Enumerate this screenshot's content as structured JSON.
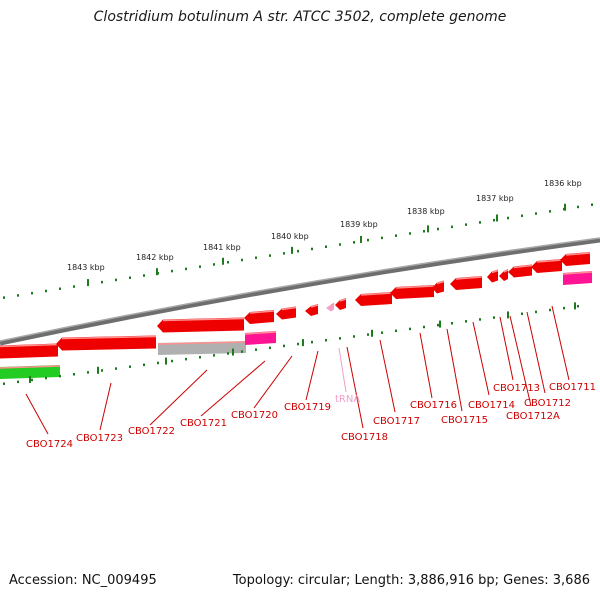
{
  "title": "Clostridium botulinum A str. ATCC 3502, complete genome",
  "footer": {
    "accession": "Accession: NC_009495",
    "summary": "Topology: circular; Length: 3,886,916 bp; Genes: 3,686"
  },
  "colors": {
    "backbone": "#7f7f7f",
    "forward_gene": "#ee0000",
    "reverse_gene": "#ee0000",
    "pseudo_gene": "#b0b0b0",
    "highlight_gene": "#ff1493",
    "trna": "#f2a0c8",
    "other_strand_gene": "#22cc22",
    "tick": "#1d7a1d",
    "label": "#cc0000"
  },
  "scale_labels": [
    "1843 kbp",
    "1842 kbp",
    "1841 kbp",
    "1840 kbp",
    "1839 kbp",
    "1838 kbp",
    "1837 kbp",
    "1836 kbp"
  ],
  "gene_labels": [
    "CBO1724",
    "CBO1723",
    "CBO1722",
    "CBO1721",
    "CBO1720",
    "CBO1719",
    "tRNA",
    "CBO1718",
    "CBO1717",
    "CBO1716",
    "CBO1715",
    "CBO1714",
    "CBO1713",
    "CBO1712A",
    "CBO1712",
    "CBO1711"
  ]
}
